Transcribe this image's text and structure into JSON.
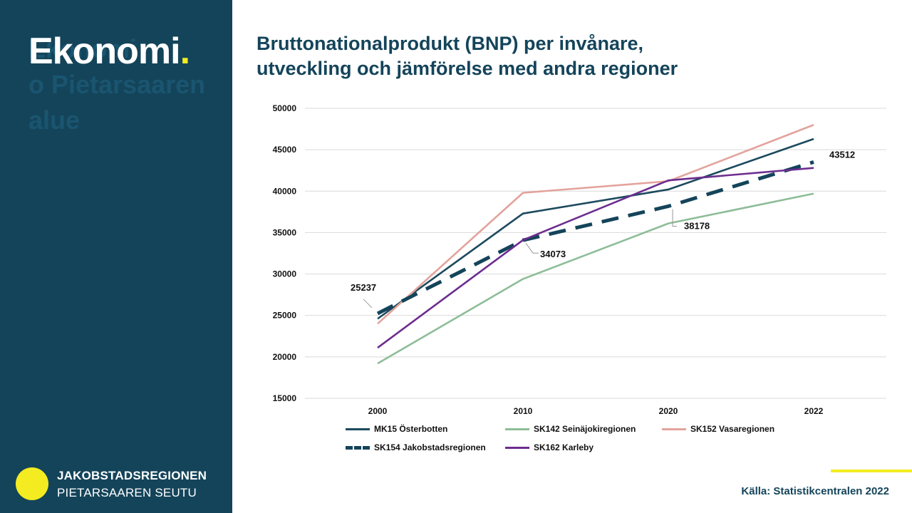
{
  "sidebar": {
    "section_title": "Ekonomi",
    "section_dot": ".",
    "ghost_text": "Ekonomi\no Pietarsaaren\nalue",
    "logo_line1": "JAKOBSTADSREGIONEN",
    "logo_line2": "PIETARSAAREN SEUTU"
  },
  "title_line1": "Bruttonationalprodukt (BNP) per invånare,",
  "title_line2": "utveckling och jämförelse med  andra regioner",
  "source": "Källa: Statistikcentralen 2022",
  "colors": {
    "sidebar": "#14445a",
    "accent": "#f4ec21"
  },
  "chart_data": {
    "type": "line",
    "categories": [
      "2000",
      "2010",
      "2020",
      "2022"
    ],
    "ylim": [
      15000,
      50000
    ],
    "yticks": [
      "15000",
      "20000",
      "25000",
      "30000",
      "35000",
      "40000",
      "45000",
      "50000"
    ],
    "grid": true,
    "legend_position": "bottom",
    "series": [
      {
        "name": "MK15 Österbotten",
        "values": [
          24600,
          37300,
          40200,
          46300
        ],
        "color": "#1c4a5e",
        "dashed": false
      },
      {
        "name": "SK142 Seinäjokiregionen",
        "values": [
          19200,
          29400,
          36100,
          39700
        ],
        "color": "#8dbd98",
        "dashed": false
      },
      {
        "name": "SK152 Vasaregionen",
        "values": [
          24000,
          39800,
          41200,
          48000
        ],
        "color": "#e3a39c",
        "dashed": false
      },
      {
        "name": "SK154 Jakobstadsregionen",
        "values": [
          25237,
          34073,
          38178,
          43512
        ],
        "color": "#14445a",
        "dashed": true
      },
      {
        "name": "SK162 Karleby",
        "values": [
          21100,
          34100,
          41300,
          42800
        ],
        "color": "#6c2d8f",
        "dashed": false
      }
    ],
    "data_labels": [
      "25237",
      "34073",
      "38178",
      "43512"
    ]
  }
}
